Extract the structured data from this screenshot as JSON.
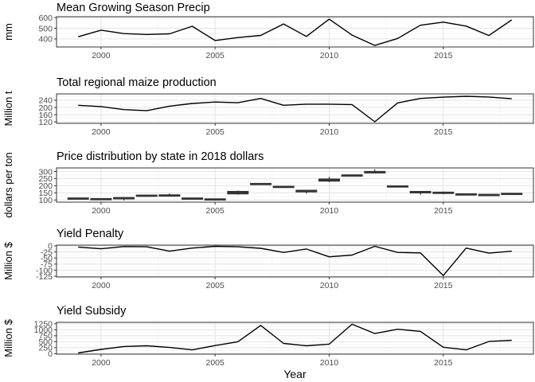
{
  "chart_data": [
    {
      "type": "line",
      "title": "Mean Growing Season Precip",
      "ylabel": "mm",
      "xlabel": "",
      "xlim": [
        1998.05,
        2018.95
      ],
      "ylim": [
        325,
        608
      ],
      "yticks": [
        400,
        500,
        600
      ],
      "xticks": [
        2000,
        2005,
        2010,
        2015
      ],
      "grid": true,
      "x": [
        1999,
        2000,
        2001,
        2002,
        2003,
        2004,
        2005,
        2006,
        2007,
        2008,
        2009,
        2010,
        2011,
        2012,
        2013,
        2014,
        2015,
        2016,
        2017,
        2018
      ],
      "y": [
        420,
        482,
        450,
        442,
        448,
        519,
        385,
        413,
        433,
        540,
        423,
        585,
        436,
        339,
        405,
        528,
        557,
        520,
        432,
        578
      ]
    },
    {
      "type": "line",
      "title": "Total regional maize production",
      "ylabel": "Million t",
      "xlabel": "",
      "xlim": [
        1998.05,
        2018.95
      ],
      "ylim": [
        112,
        275
      ],
      "yticks": [
        120,
        160,
        200,
        240
      ],
      "xticks": [
        2000,
        2005,
        2010,
        2015
      ],
      "grid": true,
      "x": [
        1999,
        2000,
        2001,
        2002,
        2003,
        2004,
        2005,
        2006,
        2007,
        2008,
        2009,
        2010,
        2011,
        2012,
        2013,
        2014,
        2015,
        2016,
        2017,
        2018
      ],
      "y": [
        212,
        205,
        188,
        182,
        207,
        222,
        230,
        226,
        250,
        212,
        218,
        218,
        216,
        121,
        225,
        250,
        257,
        262,
        258,
        248
      ]
    },
    {
      "type": "boxplot",
      "title": "Price distribution by state in 2018 dollars",
      "ylabel": "dollars per ton",
      "xlabel": "",
      "xlim": [
        1998.05,
        2018.95
      ],
      "ylim": [
        85,
        325
      ],
      "yticks": [
        100,
        150,
        200,
        250,
        300
      ],
      "xticks": [
        2000,
        2005,
        2010,
        2015
      ],
      "grid": true,
      "x": [
        1999,
        2000,
        2001,
        2002,
        2003,
        2004,
        2005,
        2006,
        2007,
        2008,
        2009,
        2010,
        2011,
        2012,
        2013,
        2014,
        2015,
        2016,
        2017,
        2018
      ],
      "median": [
        110,
        106,
        113,
        130,
        132,
        110,
        104,
        152,
        212,
        193,
        163,
        240,
        272,
        295,
        195,
        155,
        150,
        139,
        136,
        143
      ],
      "q1": [
        107,
        102,
        108,
        126,
        127,
        106,
        100,
        143,
        208,
        190,
        157,
        233,
        268,
        290,
        191,
        150,
        146,
        135,
        133,
        139
      ],
      "q3": [
        114,
        110,
        117,
        134,
        136,
        114,
        108,
        160,
        216,
        196,
        168,
        247,
        276,
        300,
        199,
        160,
        155,
        143,
        139,
        147
      ],
      "low": [
        104,
        99,
        96,
        122,
        124,
        103,
        97,
        138,
        205,
        187,
        145,
        225,
        265,
        286,
        188,
        137,
        141,
        132,
        130,
        136
      ],
      "high": [
        116,
        112,
        120,
        136,
        146,
        116,
        110,
        166,
        218,
        198,
        171,
        262,
        279,
        315,
        201,
        163,
        160,
        146,
        141,
        150
      ]
    },
    {
      "type": "line",
      "title": "Yield Penalty",
      "ylabel": "Million $",
      "xlabel": "",
      "xlim": [
        1998.05,
        2018.95
      ],
      "ylim": [
        -128,
        3
      ],
      "yticks": [
        -125,
        -100,
        -75,
        -50,
        -25,
        0
      ],
      "xticks": [
        2000,
        2005,
        2010,
        2015
      ],
      "grid": true,
      "x": [
        1999,
        2000,
        2001,
        2002,
        2003,
        2004,
        2005,
        2006,
        2007,
        2008,
        2009,
        2010,
        2011,
        2012,
        2013,
        2014,
        2015,
        2016,
        2017,
        2018
      ],
      "y": [
        -5,
        -12,
        -3,
        -4,
        -22,
        -9,
        -2,
        -4,
        -10,
        -27,
        -13,
        -45,
        -38,
        -2,
        -27,
        -29,
        -122,
        -9,
        -30,
        -22
      ]
    },
    {
      "type": "line",
      "title": "Yield Subsidy",
      "ylabel": "Million $",
      "xlabel": "Year",
      "xlim": [
        1998.05,
        2018.95
      ],
      "ylim": [
        -20,
        1310
      ],
      "yticks": [
        0,
        250,
        500,
        750,
        1000,
        1250
      ],
      "xticks": [
        2000,
        2005,
        2010,
        2015
      ],
      "grid": true,
      "x": [
        1999,
        2000,
        2001,
        2002,
        2003,
        2004,
        2005,
        2006,
        2007,
        2008,
        2009,
        2010,
        2011,
        2012,
        2013,
        2014,
        2015,
        2016,
        2017,
        2018
      ],
      "y": [
        30,
        180,
        300,
        330,
        260,
        160,
        340,
        500,
        1180,
        430,
        330,
        400,
        1230,
        840,
        1020,
        930,
        270,
        160,
        510,
        560
      ]
    }
  ]
}
